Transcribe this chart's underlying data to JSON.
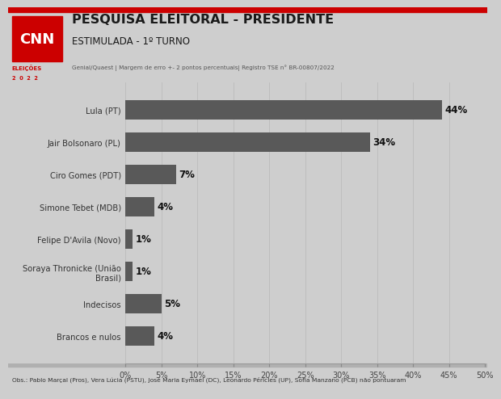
{
  "title_main": "PESQUISA ELEITORAL - PRESIDENTE",
  "title_sub": "ESTIMULADA - 1º TURNO",
  "title_info": "Genial/Quaest | Margem de erro +- 2 pontos percentuais| Registro TSE n° BR-00807/2022",
  "obs": "Obs.: Pablo Marçal (Pros), Vera Lúcia (PSTU), José Maria Eymael (DC), Leonardo Péricles (UP), Sofia Manzano (PCB) não pontuaram",
  "categories": [
    "Lula (PT)",
    "Jair Bolsonaro (PL)",
    "Ciro Gomes (PDT)",
    "Simone Tebet (MDB)",
    "Felipe D'Avila (Novo)",
    "Soraya Thronicke (União\nBrasil)",
    "Indecisos",
    "Brancos e nulos"
  ],
  "values": [
    44,
    34,
    7,
    4,
    1,
    1,
    5,
    4
  ],
  "bar_color": "#595959",
  "background_color": "#cecece",
  "chart_bg": "#d4d4d4",
  "header_bg": "#e2e2e2",
  "obs_bg": "#c8c8c8",
  "xlim": [
    0,
    50
  ],
  "xticks": [
    0,
    5,
    10,
    15,
    20,
    25,
    30,
    35,
    40,
    45,
    50
  ],
  "xtick_labels": [
    "0%",
    "5%",
    "10%",
    "15%",
    "20%",
    "25%",
    "30%",
    "35%",
    "40%",
    "45%",
    "50%"
  ],
  "cnn_red": "#cc0000",
  "header_title_color": "#1a1a1a",
  "text_dark": "#333333",
  "value_label_color": "#111111",
  "grid_color": "#bbbbbb"
}
